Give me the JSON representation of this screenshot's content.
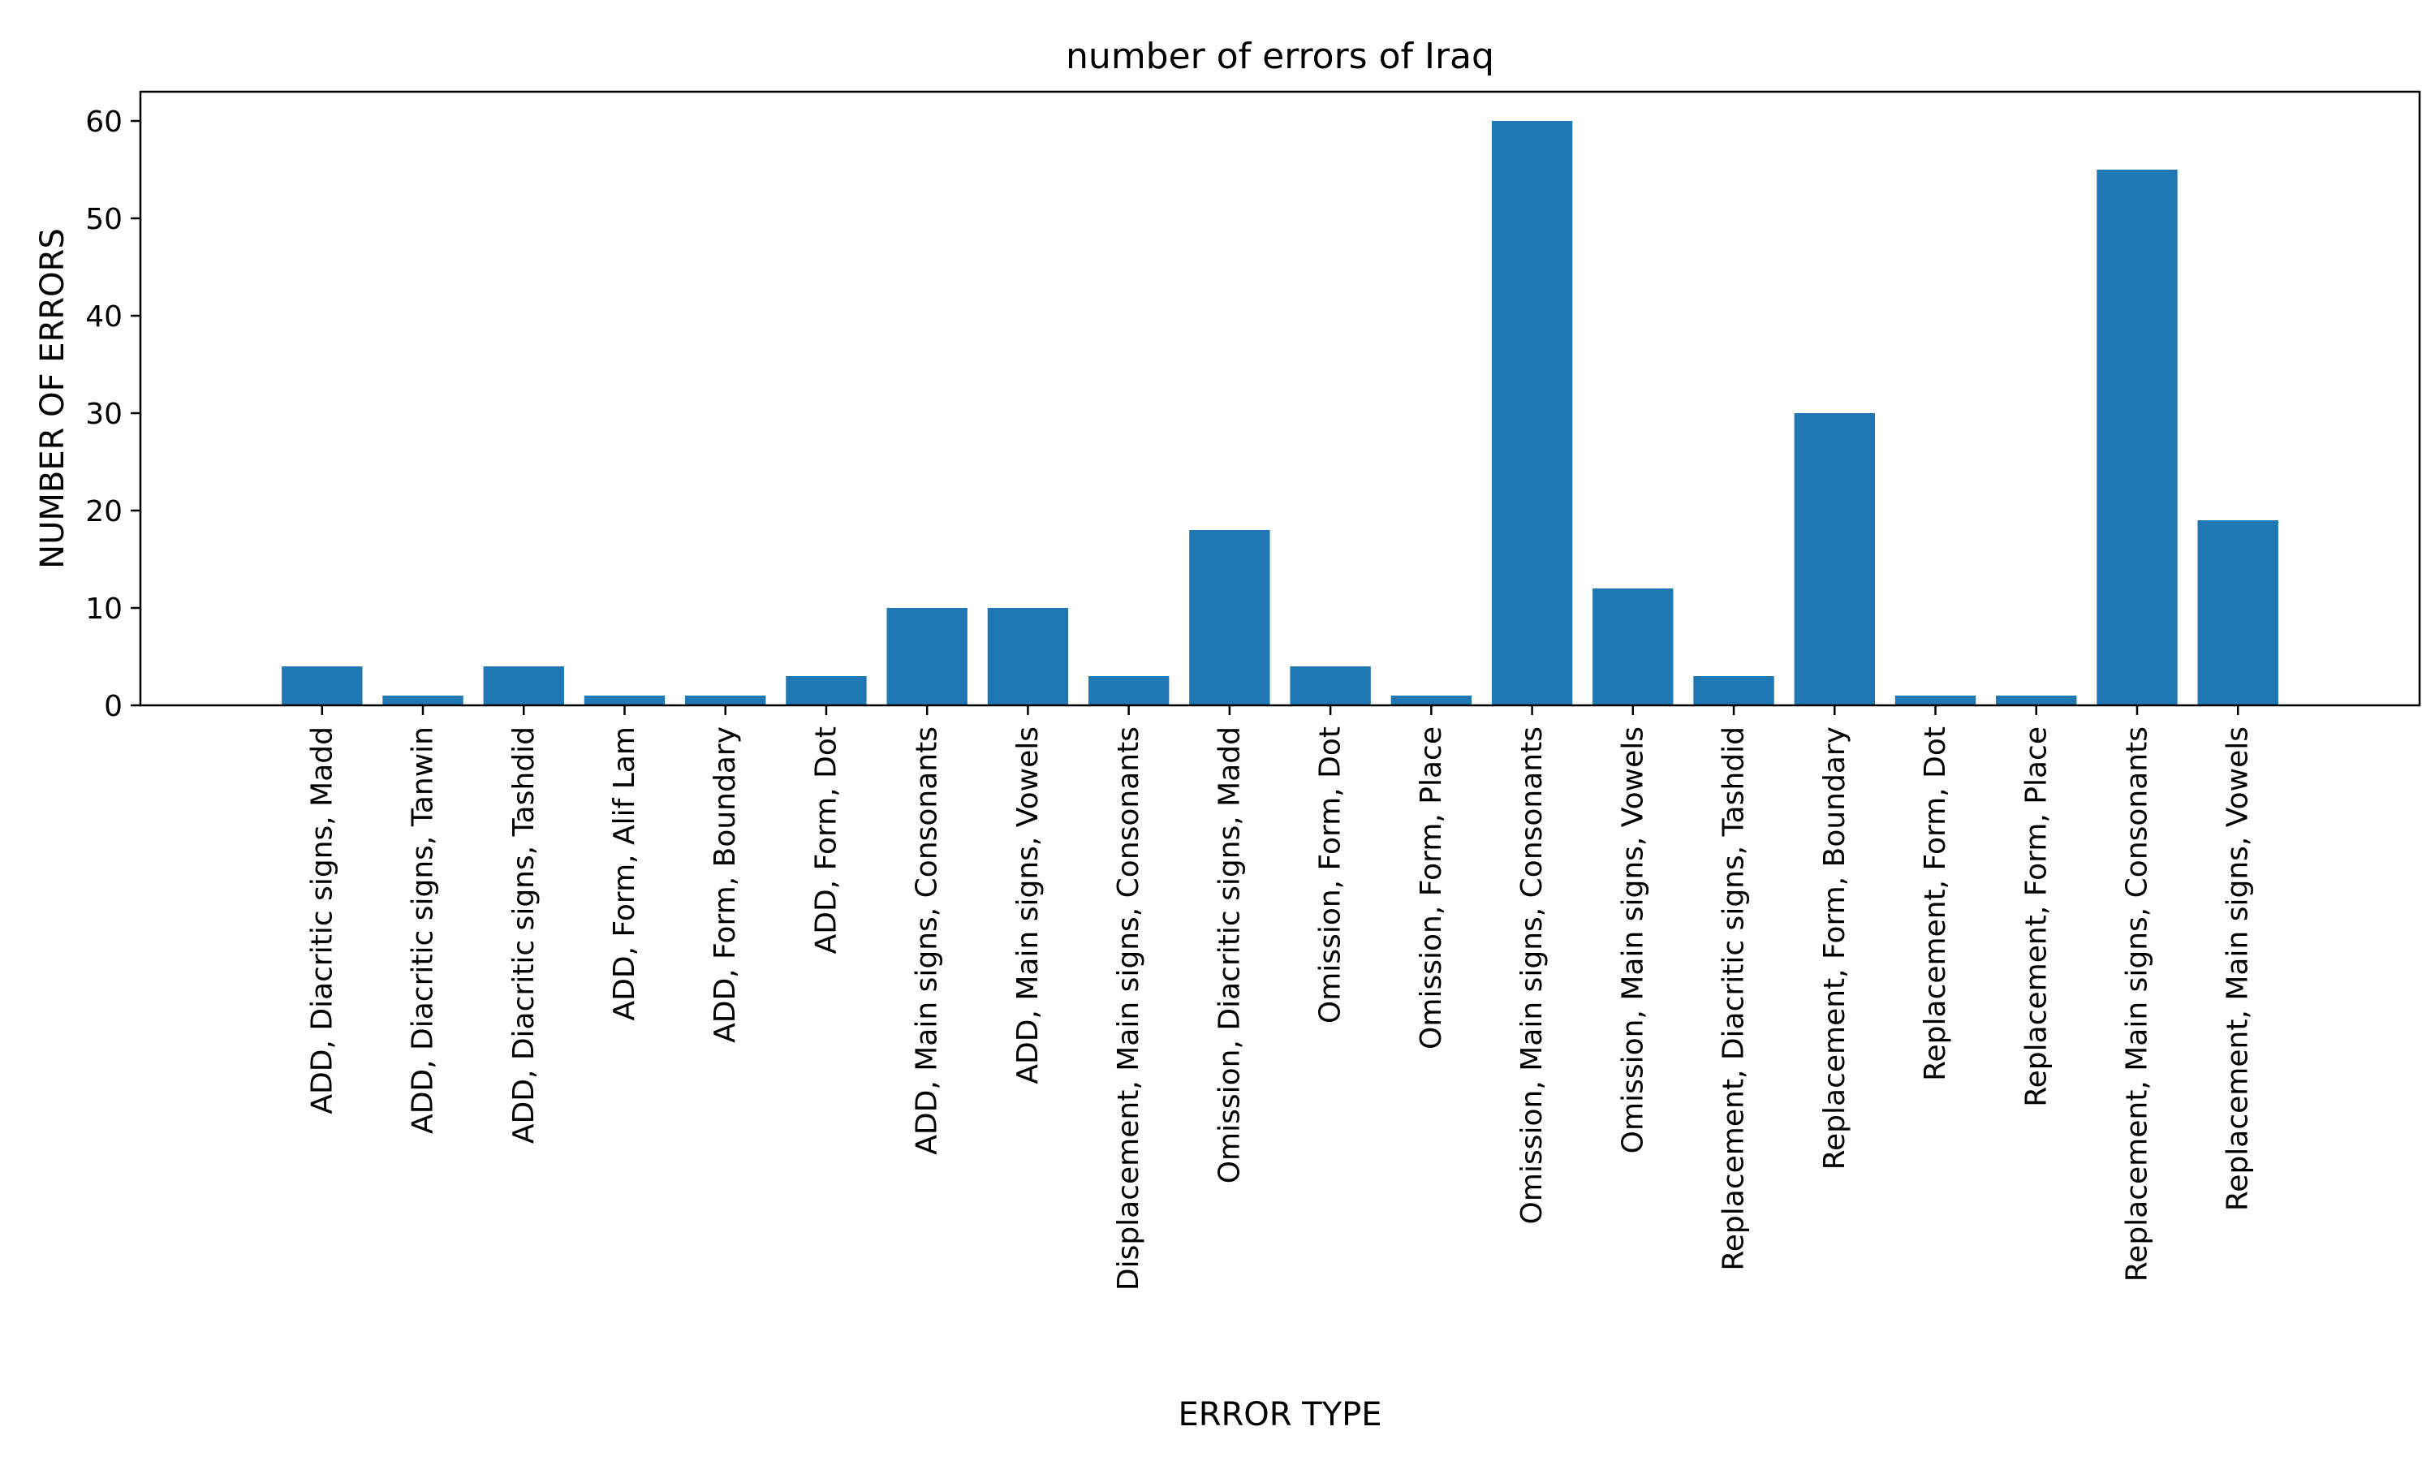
{
  "chart_data": {
    "type": "bar",
    "title": "number of errors of Iraq",
    "xlabel": "ERROR TYPE",
    "ylabel": "NUMBER OF ERRORS",
    "ylim": [
      0,
      63
    ],
    "yticks": [
      0,
      10,
      20,
      30,
      40,
      50,
      60
    ],
    "grid": false,
    "bar_color": "#1f77b4",
    "categories": [
      "ADD, Diacritic signs, Madd",
      "ADD, Diacritic signs, Tanwin",
      "ADD, Diacritic signs, Tashdid",
      "ADD, Form, Alif Lam",
      "ADD, Form, Boundary",
      "ADD, Form, Dot",
      "ADD, Main signs, Consonants",
      "ADD, Main signs, Vowels",
      "Displacement, Main signs, Consonants",
      "Omission, Diacritic signs, Madd",
      "Omission, Form, Dot",
      "Omission, Form, Place",
      "Omission, Main signs, Consonants",
      "Omission, Main signs, Vowels",
      "Replacement, Diacritic signs, Tashdid",
      "Replacement, Form, Boundary",
      "Replacement, Form, Dot",
      "Replacement, Form, Place",
      "Replacement, Main signs, Consonants",
      "Replacement, Main signs, Vowels"
    ],
    "values": [
      4,
      1,
      4,
      1,
      1,
      3,
      10,
      10,
      3,
      18,
      4,
      1,
      60,
      12,
      3,
      30,
      1,
      1,
      55,
      19
    ]
  }
}
